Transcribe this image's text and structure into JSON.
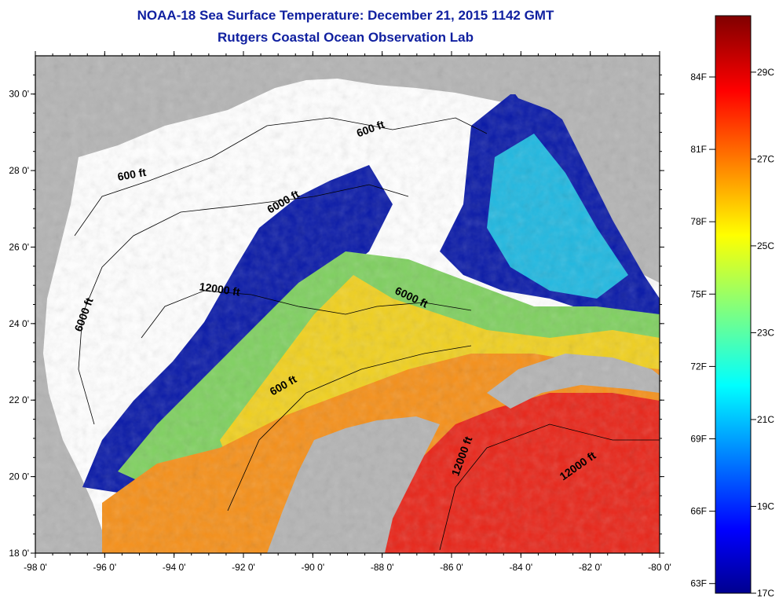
{
  "title": {
    "line1": "NOAA-18 Sea Surface Temperature:  December 21, 2015 1142 GMT",
    "line2": "Rutgers Coastal Ocean Observation Lab"
  },
  "map": {
    "lon_range": [
      -98,
      -80
    ],
    "lat_range": [
      18,
      31
    ],
    "lon_ticks": [
      {
        "value": -98,
        "label": "-98 0'"
      },
      {
        "value": -96,
        "label": "-96 0'"
      },
      {
        "value": -94,
        "label": "-94 0'"
      },
      {
        "value": -92,
        "label": "-92 0'"
      },
      {
        "value": -90,
        "label": "-90 0'"
      },
      {
        "value": -88,
        "label": "-88 0'"
      },
      {
        "value": -86,
        "label": "-86 0'"
      },
      {
        "value": -84,
        "label": "-84 0'"
      },
      {
        "value": -82,
        "label": "-82 0'"
      },
      {
        "value": -80,
        "label": "-80 0'"
      }
    ],
    "lat_ticks": [
      {
        "value": 18,
        "label": "18 0'"
      },
      {
        "value": 20,
        "label": "20 0'"
      },
      {
        "value": 22,
        "label": "22 0'"
      },
      {
        "value": 24,
        "label": "24 0'"
      },
      {
        "value": 26,
        "label": "26 0'"
      },
      {
        "value": 28,
        "label": "28 0'"
      },
      {
        "value": 30,
        "label": "30 0'"
      }
    ],
    "contour_labels": [
      {
        "text": "600 ft",
        "lon": -88.3,
        "lat": 29.0,
        "angle": -20
      },
      {
        "text": "600 ft",
        "lon": -95.2,
        "lat": 27.8,
        "angle": -10
      },
      {
        "text": "6000 ft",
        "lon": -96.5,
        "lat": 24.2,
        "angle": -70
      },
      {
        "text": "12000 ft",
        "lon": -92.7,
        "lat": 24.8,
        "angle": 8
      },
      {
        "text": "6000 ft",
        "lon": -90.8,
        "lat": 27.1,
        "angle": -30
      },
      {
        "text": "6000 ft",
        "lon": -87.2,
        "lat": 24.6,
        "angle": 25
      },
      {
        "text": "600 ft",
        "lon": -90.8,
        "lat": 22.3,
        "angle": -30
      },
      {
        "text": "12000 ft",
        "lon": -85.6,
        "lat": 20.5,
        "angle": -70
      },
      {
        "text": "12000 ft",
        "lon": -82.3,
        "lat": 20.2,
        "angle": -35
      }
    ],
    "colors": {
      "land": "#b4b4b4",
      "no_data": "#ffffff"
    }
  },
  "colorbar": {
    "fahrenheit": [
      {
        "value": 84,
        "label": "84F"
      },
      {
        "value": 81,
        "label": "81F"
      },
      {
        "value": 78,
        "label": "78F"
      },
      {
        "value": 75,
        "label": "75F"
      },
      {
        "value": 72,
        "label": "72F"
      },
      {
        "value": 69,
        "label": "69F"
      },
      {
        "value": 66,
        "label": "66F"
      },
      {
        "value": 63,
        "label": "63F"
      }
    ],
    "celsius": [
      {
        "value": 29,
        "label": "29C"
      },
      {
        "value": 27,
        "label": "27C"
      },
      {
        "value": 25,
        "label": "25C"
      },
      {
        "value": 23,
        "label": "23C"
      },
      {
        "value": 21,
        "label": "21C"
      },
      {
        "value": 19,
        "label": "19C"
      },
      {
        "value": 17,
        "label": "17C"
      }
    ],
    "range_c": [
      17,
      30.3
    ]
  }
}
